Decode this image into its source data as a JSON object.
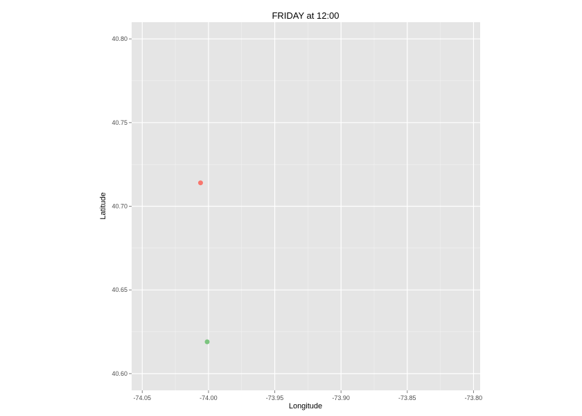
{
  "chart_data": {
    "type": "scatter",
    "title": "FRIDAY at 12:00",
    "xlabel": "Longitude",
    "ylabel": "Latitude",
    "xlim": [
      -74.058,
      -73.795
    ],
    "ylim": [
      40.59,
      40.81
    ],
    "xticks": [
      -74.05,
      -74.0,
      -73.95,
      -73.9,
      -73.85,
      -73.8
    ],
    "xtick_labels": [
      "-74.05",
      "-74.00",
      "-73.95",
      "-73.90",
      "-73.85",
      "-73.80"
    ],
    "yticks": [
      40.6,
      40.65,
      40.7,
      40.75,
      40.8
    ],
    "ytick_labels": [
      "40.60",
      "40.65",
      "40.70",
      "40.75",
      "40.80"
    ],
    "grid": true,
    "legend": "none",
    "points": [
      {
        "x": -74.006,
        "y": 40.714,
        "color": "#F8766D"
      },
      {
        "x": -74.001,
        "y": 40.619,
        "color": "#7CC47F"
      }
    ]
  },
  "style": {
    "panel_background": "#E5E5E5",
    "grid_major": "#FFFFFF",
    "grid_minor": "#F2F2F2",
    "tick_color": "#7F7F7F"
  }
}
